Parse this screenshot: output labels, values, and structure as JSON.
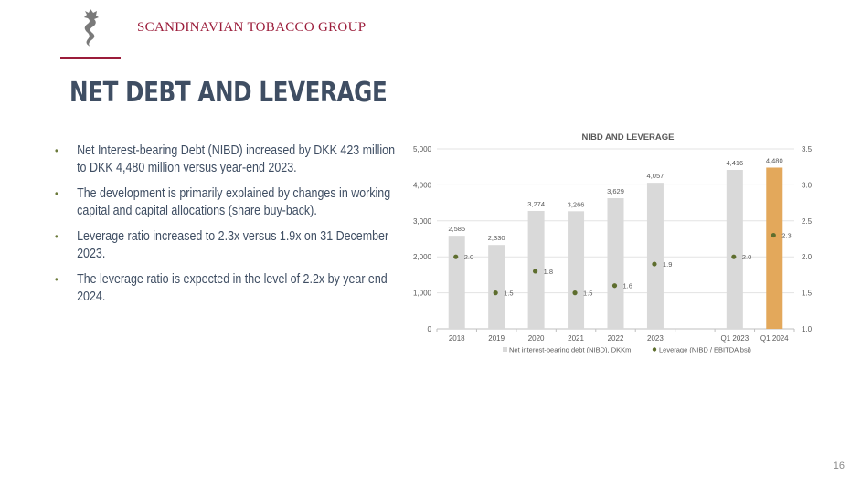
{
  "header": {
    "brand": "SCANDINAVIAN TOBACCO GROUP",
    "logo_icon": "seahorse-dragon-logo-icon",
    "title": "NET DEBT AND LEVERAGE"
  },
  "bullets": [
    "Net Interest-bearing Debt (NIBD) increased by DKK 423 million to DKK 4,480 million versus year-end 2023.",
    "The development is primarily explained by changes in working capital and capital allocations (share buy-back).",
    "Leverage ratio increased to 2.3x versus 1.9x on 31 December 2023.",
    "The leverage ratio is expected in the level of 2.2x by year end 2024."
  ],
  "page_number": "16",
  "colors": {
    "brand": "#9b1c3a",
    "title": "#3f4e63",
    "bar": "#d9d9d9",
    "bar_highlight": "#e3a85b",
    "leverage_marker": "#5e6e2e"
  },
  "chart_data": {
    "type": "bar",
    "title": "NIBD AND LEVERAGE",
    "categories": [
      "2018",
      "2019",
      "2020",
      "2021",
      "2022",
      "2023",
      "",
      "Q1 2023",
      "Q1 2024"
    ],
    "series": [
      {
        "name": "Net interest-bearing debt (NIBD), DKKm",
        "type": "bar",
        "axis": "left",
        "values": [
          2585,
          2330,
          3274,
          3266,
          3629,
          4057,
          null,
          4416,
          4480
        ],
        "labels": [
          "2,585",
          "2,330",
          "3,274",
          "3,266",
          "3,629",
          "4,057",
          "",
          "4,416",
          "4,480"
        ],
        "highlight_index": 8
      },
      {
        "name": "Leverage (NIBD / EBITDA bsi)",
        "type": "scatter",
        "axis": "right",
        "values": [
          2.0,
          1.5,
          1.8,
          1.5,
          1.6,
          1.9,
          null,
          2.0,
          2.3
        ],
        "labels": [
          "2.0",
          "1.5",
          "1.8",
          "1.5",
          "1.6",
          "1.9",
          "",
          "2.0",
          "2.3"
        ]
      }
    ],
    "ylim_left": [
      0,
      5000
    ],
    "yticks_left": [
      "0",
      "1,000",
      "2,000",
      "3,000",
      "4,000",
      "5,000"
    ],
    "ylim_right": [
      1.0,
      3.5
    ],
    "yticks_right": [
      "1.0",
      "1.5",
      "2.0",
      "2.5",
      "3.0",
      "3.5"
    ],
    "grid": true,
    "legend": "bottom",
    "xlabel": "",
    "ylabel": ""
  }
}
